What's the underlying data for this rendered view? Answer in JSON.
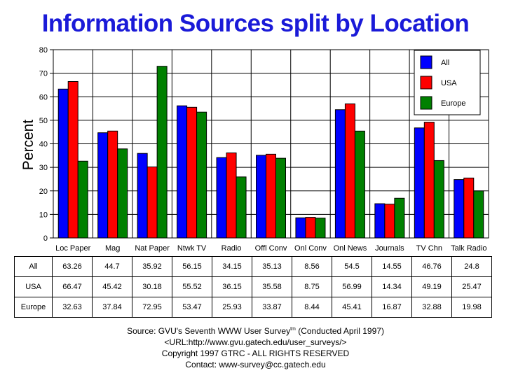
{
  "title": "Information Sources split by Location",
  "chart_data": {
    "type": "bar",
    "title": "Information Sources split by Location",
    "xlabel": "",
    "ylabel": "Percent",
    "ylim": [
      0,
      80
    ],
    "yticks": [
      0,
      10,
      20,
      30,
      40,
      50,
      60,
      70,
      80
    ],
    "grid": true,
    "legend_position": "top-right",
    "categories": [
      "Loc Paper",
      "Mag",
      "Nat Paper",
      "Ntwk TV",
      "Radio",
      "Offl Conv",
      "Onl Conv",
      "Onl News",
      "Journals",
      "TV Chn",
      "Talk Radio"
    ],
    "series": [
      {
        "name": "All",
        "color": "#0000ff",
        "values": [
          63.26,
          44.7,
          35.92,
          56.15,
          34.15,
          35.13,
          8.56,
          54.5,
          14.55,
          46.76,
          24.8
        ],
        "labels": [
          "63.26",
          "44.7",
          "35.92",
          "56.15",
          "34.15",
          "35.13",
          "8.56",
          "54.5",
          "14.55",
          "46.76",
          "24.8"
        ]
      },
      {
        "name": "USA",
        "color": "#ff0000",
        "values": [
          66.47,
          45.42,
          30.18,
          55.52,
          36.15,
          35.58,
          8.75,
          56.99,
          14.34,
          49.19,
          25.47
        ],
        "labels": [
          "66.47",
          "45.42",
          "30.18",
          "55.52",
          "36.15",
          "35.58",
          "8.75",
          "56.99",
          "14.34",
          "49.19",
          "25.47"
        ]
      },
      {
        "name": "Europe",
        "color": "#008000",
        "values": [
          32.63,
          37.84,
          72.95,
          53.47,
          25.93,
          33.87,
          8.44,
          45.41,
          16.87,
          32.88,
          19.98
        ],
        "labels": [
          "32.63",
          "37.84",
          "72.95",
          "53.47",
          "25.93",
          "33.87",
          "8.44",
          "45.41",
          "16.87",
          "32.88",
          "19.98"
        ]
      }
    ]
  },
  "footer": {
    "source_prefix": "Source: GVU's Seventh WWW User Survey",
    "source_tm": "tm",
    "source_suffix": " (Conducted April 1997)",
    "url": "<URL:http://www.gvu.gatech.edu/user_surveys/>",
    "copyright": "Copyright 1997 GTRC - ALL RIGHTS RESERVED",
    "contact": "Contact: www-survey@cc.gatech.edu"
  }
}
